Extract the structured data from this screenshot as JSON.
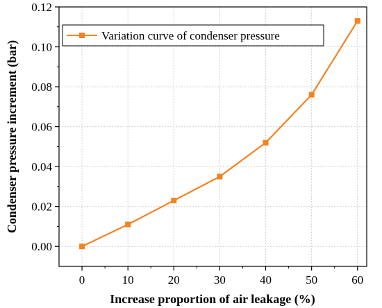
{
  "chart_data": {
    "type": "line",
    "xlabel": "Increase proportion of air leakage (%)",
    "ylabel": "Condenser pressure increment (bar)",
    "xlim": [
      -5,
      62
    ],
    "ylim": [
      -0.01,
      0.12
    ],
    "x_ticks": [
      "0",
      "10",
      "20",
      "30",
      "40",
      "50",
      "60"
    ],
    "y_ticks": [
      "0.00",
      "0.02",
      "0.04",
      "0.06",
      "0.08",
      "0.10",
      "0.12"
    ],
    "grid": true,
    "legend_position": "top-left",
    "series": [
      {
        "name": "Variation curve of condenser pressure",
        "color": "#F5821F",
        "marker": "square",
        "x": [
          0,
          10,
          20,
          30,
          40,
          50,
          60
        ],
        "y": [
          0.0,
          0.011,
          0.023,
          0.035,
          0.052,
          0.076,
          0.113
        ]
      }
    ]
  }
}
